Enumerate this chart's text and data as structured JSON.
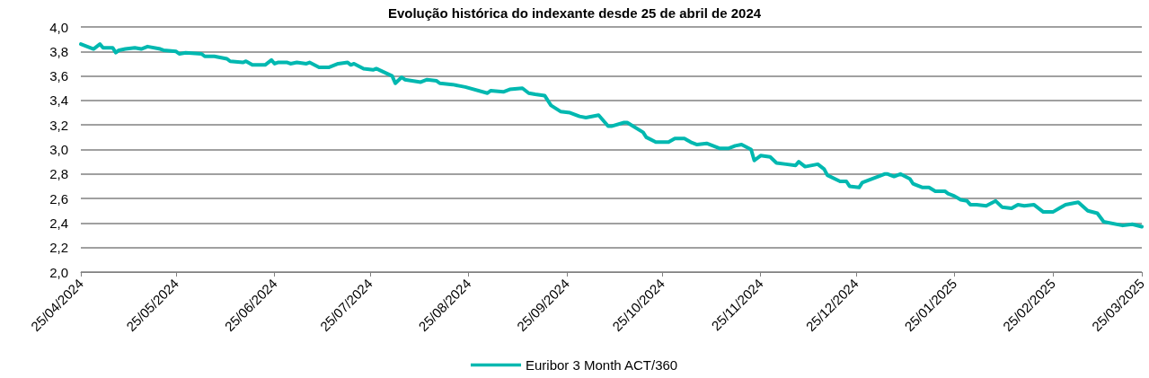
{
  "chart_data": {
    "type": "line",
    "title": "Evolução histórica do indexante desde 25 de abril de 2024",
    "x": [
      "2024-04-25",
      "2024-04-29",
      "2024-05-01",
      "2024-05-02",
      "2024-05-05",
      "2024-05-06",
      "2024-05-07",
      "2024-05-09",
      "2024-05-12",
      "2024-05-14",
      "2024-05-16",
      "2024-05-20",
      "2024-05-21",
      "2024-05-25",
      "2024-05-26",
      "2024-05-28",
      "2024-06-02",
      "2024-06-03",
      "2024-06-06",
      "2024-06-10",
      "2024-06-11",
      "2024-06-15",
      "2024-06-16",
      "2024-06-18",
      "2024-06-22",
      "2024-06-24",
      "2024-06-25",
      "2024-06-26",
      "2024-06-29",
      "2024-06-30",
      "2024-07-02",
      "2024-07-05",
      "2024-07-06",
      "2024-07-09",
      "2024-07-12",
      "2024-07-15",
      "2024-07-18",
      "2024-07-19",
      "2024-07-20",
      "2024-07-23",
      "2024-07-26",
      "2024-07-27",
      "2024-08-01",
      "2024-08-02",
      "2024-08-04",
      "2024-08-05",
      "2024-08-10",
      "2024-08-12",
      "2024-08-15",
      "2024-08-16",
      "2024-08-20",
      "2024-08-24",
      "2024-08-31",
      "2024-09-01",
      "2024-09-05",
      "2024-09-07",
      "2024-09-11",
      "2024-09-13",
      "2024-09-15",
      "2024-09-18",
      "2024-09-20",
      "2024-09-23",
      "2024-09-26",
      "2024-09-29",
      "2024-10-01",
      "2024-10-05",
      "2024-10-08",
      "2024-10-09",
      "2024-10-13",
      "2024-10-14",
      "2024-10-19",
      "2024-10-20",
      "2024-10-23",
      "2024-10-27",
      "2024-10-29",
      "2024-11-01",
      "2024-11-03",
      "2024-11-05",
      "2024-11-08",
      "2024-11-12",
      "2024-11-15",
      "2024-11-17",
      "2024-11-19",
      "2024-11-22",
      "2024-11-23",
      "2024-11-25",
      "2024-11-28",
      "2024-11-30",
      "2024-12-03",
      "2024-12-06",
      "2024-12-07",
      "2024-12-09",
      "2024-12-13",
      "2024-12-15",
      "2024-12-16",
      "2024-12-20",
      "2024-12-22",
      "2024-12-23",
      "2024-12-26",
      "2024-12-27",
      "2024-12-29",
      "2025-01-01",
      "2025-01-03",
      "2025-01-04",
      "2025-01-06",
      "2025-01-08",
      "2025-01-11",
      "2025-01-12",
      "2025-01-15",
      "2025-01-17",
      "2025-01-19",
      "2025-01-22",
      "2025-01-23",
      "2025-01-25",
      "2025-01-27",
      "2025-01-29",
      "2025-01-30",
      "2025-02-01",
      "2025-02-04",
      "2025-02-07",
      "2025-02-09",
      "2025-02-12",
      "2025-02-14",
      "2025-02-16",
      "2025-02-19",
      "2025-02-21",
      "2025-02-22",
      "2025-02-25",
      "2025-02-27",
      "2025-03-01",
      "2025-03-05",
      "2025-03-08",
      "2025-03-11",
      "2025-03-13",
      "2025-03-19",
      "2025-03-22",
      "2025-03-25"
    ],
    "series": [
      {
        "name": "Euribor 3 Month ACT/360",
        "color": "#00b8b0",
        "values": [
          3.86,
          3.82,
          3.86,
          3.83,
          3.83,
          3.79,
          3.81,
          3.82,
          3.83,
          3.82,
          3.84,
          3.82,
          3.81,
          3.8,
          3.78,
          3.79,
          3.78,
          3.76,
          3.76,
          3.74,
          3.72,
          3.71,
          3.72,
          3.69,
          3.69,
          3.73,
          3.7,
          3.71,
          3.71,
          3.7,
          3.71,
          3.7,
          3.71,
          3.67,
          3.67,
          3.7,
          3.71,
          3.69,
          3.7,
          3.66,
          3.65,
          3.66,
          3.6,
          3.54,
          3.59,
          3.57,
          3.55,
          3.57,
          3.56,
          3.54,
          3.53,
          3.51,
          3.46,
          3.48,
          3.47,
          3.49,
          3.5,
          3.46,
          3.45,
          3.44,
          3.36,
          3.31,
          3.3,
          3.27,
          3.26,
          3.28,
          3.19,
          3.19,
          3.22,
          3.22,
          3.14,
          3.1,
          3.06,
          3.06,
          3.09,
          3.09,
          3.06,
          3.04,
          3.05,
          3.01,
          3.01,
          3.03,
          3.04,
          3.0,
          2.91,
          2.95,
          2.94,
          2.89,
          2.88,
          2.87,
          2.9,
          2.86,
          2.88,
          2.84,
          2.79,
          2.74,
          2.74,
          2.7,
          2.69,
          2.73,
          2.75,
          2.78,
          2.8,
          2.8,
          2.78,
          2.8,
          2.76,
          2.72,
          2.69,
          2.69,
          2.66,
          2.66,
          2.64,
          2.62,
          2.59,
          2.58,
          2.55,
          2.55,
          2.54,
          2.58,
          2.53,
          2.52,
          2.55,
          2.54,
          2.55,
          2.51,
          2.49,
          2.49,
          2.52,
          2.55,
          2.57,
          2.5,
          2.48,
          2.41,
          2.38,
          2.39,
          2.37
        ]
      }
    ],
    "xlim": [
      "2024-04-25",
      "2025-03-25"
    ],
    "xticks": [
      {
        "value": "2024-04-25",
        "label": "25/04/2024"
      },
      {
        "value": "2024-05-25",
        "label": "25/05/2024"
      },
      {
        "value": "2024-06-25",
        "label": "25/06/2024"
      },
      {
        "value": "2024-07-25",
        "label": "25/07/2024"
      },
      {
        "value": "2024-08-25",
        "label": "25/08/2024"
      },
      {
        "value": "2024-09-25",
        "label": "25/09/2024"
      },
      {
        "value": "2024-10-25",
        "label": "25/10/2024"
      },
      {
        "value": "2024-11-25",
        "label": "25/11/2024"
      },
      {
        "value": "2024-12-25",
        "label": "25/12/2024"
      },
      {
        "value": "2025-01-25",
        "label": "25/01/2025"
      },
      {
        "value": "2025-02-25",
        "label": "25/02/2025"
      },
      {
        "value": "2025-03-25",
        "label": "25/03/2025"
      }
    ],
    "ylim": [
      2.0,
      4.0
    ],
    "yticks": [
      {
        "value": 2.0,
        "label": "2,0"
      },
      {
        "value": 2.2,
        "label": "2,2"
      },
      {
        "value": 2.4,
        "label": "2,4"
      },
      {
        "value": 2.6,
        "label": "2,6"
      },
      {
        "value": 2.8,
        "label": "2,8"
      },
      {
        "value": 3.0,
        "label": "3,0"
      },
      {
        "value": 3.2,
        "label": "3,2"
      },
      {
        "value": 3.4,
        "label": "3,4"
      },
      {
        "value": 3.6,
        "label": "3,6"
      },
      {
        "value": 3.8,
        "label": "3,8"
      },
      {
        "value": 4.0,
        "label": "4,0"
      }
    ],
    "grid": "y",
    "legend": "bottom",
    "marker": "none",
    "line_style": "solid"
  }
}
